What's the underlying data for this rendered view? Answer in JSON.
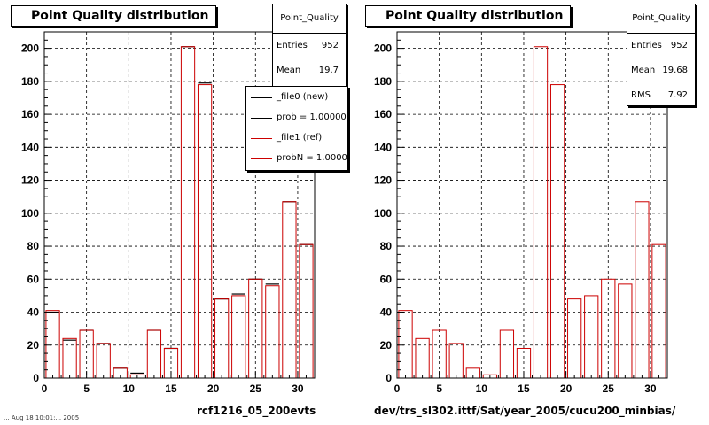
{
  "panels": [
    {
      "title": "Point Quality distribution",
      "stats": {
        "name": "Point_Quality",
        "rows": [
          {
            "k": "Entries",
            "v": "952"
          },
          {
            "k": "Mean",
            "v": "19.7"
          }
        ]
      },
      "xcaption": "rcf1216_05_200evts"
    },
    {
      "title": "Point Quality distribution",
      "stats": {
        "name": "Point_Quality",
        "rows": [
          {
            "k": "Entries",
            "v": "952"
          },
          {
            "k": "Mean",
            "v": "19.68"
          },
          {
            "k": "RMS",
            "v": "7.92"
          }
        ]
      },
      "xcaption": "dev/trs_sl302.ittf/Sat/year_2005/cucu200_minbias/"
    }
  ],
  "legend": [
    {
      "label": "_file0 (new)",
      "color": "#000000"
    },
    {
      "label": "prob = 1.000000",
      "color": "#000000"
    },
    {
      "label": "_file1 (ref)",
      "color": "#cc0000"
    },
    {
      "label": "probN = 1.000000",
      "color": "#cc0000"
    }
  ],
  "timestamp": "... Aug 18 10:01:... 2005",
  "colors": {
    "ref": "#cc0000",
    "new": "#000000",
    "grid": "#000000"
  },
  "chart_data": [
    {
      "type": "bar",
      "title": "Point Quality distribution",
      "xlabel": "rcf1216_05_200evts",
      "ylabel": "",
      "xlim": [
        0,
        32
      ],
      "ylim": [
        0,
        210
      ],
      "xticks": [
        0,
        5,
        10,
        15,
        20,
        25,
        30
      ],
      "yticks": [
        0,
        20,
        40,
        60,
        80,
        100,
        120,
        140,
        160,
        180,
        200
      ],
      "grid": true,
      "series": [
        {
          "name": "_file0 (new)",
          "x": [
            1,
            3,
            5,
            7,
            9,
            11,
            13,
            15,
            17,
            19,
            21,
            23,
            25,
            27,
            29,
            31
          ],
          "values": [
            40,
            23,
            29,
            21,
            6,
            3,
            29,
            18,
            201,
            179,
            48,
            51,
            60,
            57,
            107,
            81
          ]
        },
        {
          "name": "_file1 (ref)",
          "x": [
            1,
            3,
            5,
            7,
            9,
            11,
            13,
            15,
            17,
            19,
            21,
            23,
            25,
            27,
            29,
            31
          ],
          "values": [
            41,
            24,
            29,
            21,
            6,
            2,
            29,
            18,
            201,
            178,
            48,
            50,
            60,
            56,
            107,
            81
          ]
        }
      ]
    },
    {
      "type": "bar",
      "title": "Point Quality distribution",
      "xlabel": "dev/trs_sl302.ittf/Sat/year_2005/cucu200_minbias/",
      "ylabel": "",
      "xlim": [
        0,
        32
      ],
      "ylim": [
        0,
        210
      ],
      "xticks": [
        0,
        5,
        10,
        15,
        20,
        25,
        30
      ],
      "yticks": [
        0,
        20,
        40,
        60,
        80,
        100,
        120,
        140,
        160,
        180,
        200
      ],
      "grid": true,
      "series": [
        {
          "name": "_file1 (ref)",
          "x": [
            1,
            3,
            5,
            7,
            9,
            11,
            13,
            15,
            17,
            19,
            21,
            23,
            25,
            27,
            29,
            31
          ],
          "values": [
            41,
            24,
            29,
            21,
            6,
            2,
            29,
            18,
            201,
            178,
            48,
            50,
            60,
            57,
            107,
            81
          ]
        }
      ]
    }
  ]
}
